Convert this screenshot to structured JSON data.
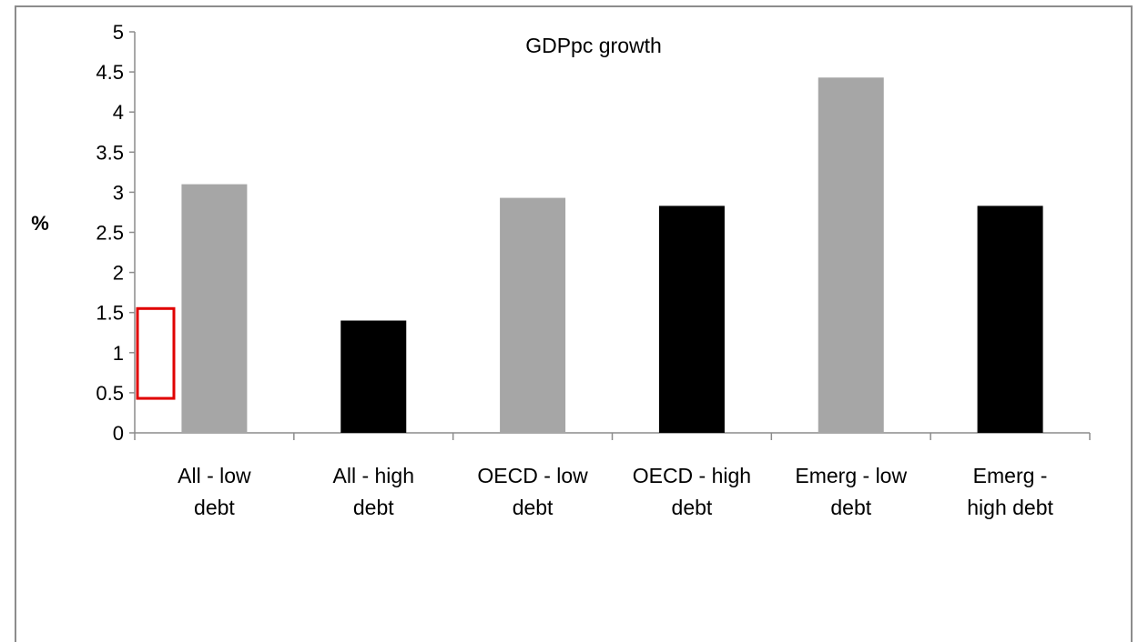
{
  "chart_data": {
    "type": "bar",
    "title": "GDPpc growth",
    "ylabel": "%",
    "xlabel": "",
    "categories": [
      [
        "All - low",
        "debt"
      ],
      [
        "All - high",
        "debt"
      ],
      [
        "OECD - low",
        "debt"
      ],
      [
        "OECD - high",
        "debt"
      ],
      [
        "Emerg - low",
        "debt"
      ],
      [
        "Emerg -",
        "high debt"
      ]
    ],
    "values": [
      3.1,
      1.4,
      2.93,
      2.83,
      4.43,
      2.83
    ],
    "bar_colors": [
      "#a6a6a6",
      "#000000",
      "#a6a6a6",
      "#000000",
      "#a6a6a6",
      "#000000"
    ],
    "ylim": [
      0,
      5
    ],
    "yticks": [
      "0",
      "0.5",
      "1",
      "1.5",
      "2",
      "2.5",
      "3",
      "3.5",
      "4",
      "4.5",
      "5"
    ],
    "grid": false,
    "legend": "none",
    "highlight": {
      "color": "#e00000",
      "y_range": [
        0.43,
        1.55
      ]
    }
  }
}
